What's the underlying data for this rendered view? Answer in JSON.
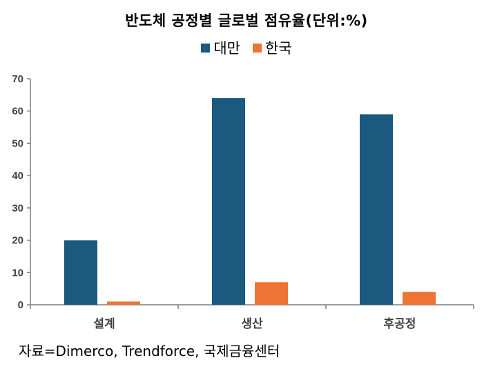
{
  "chart_data": {
    "type": "bar",
    "title": "반도체 공정별 글로벌 점유율(단위:%)",
    "categories": [
      "설계",
      "생산",
      "후공정"
    ],
    "series": [
      {
        "name": "대만",
        "color": "#1b5a7e",
        "values": [
          20,
          64,
          59
        ]
      },
      {
        "name": "한국",
        "color": "#ed7432",
        "values": [
          1,
          7,
          4
        ]
      }
    ],
    "ylim": [
      0,
      70
    ],
    "yticks": [
      "0",
      "10",
      "20",
      "30",
      "40",
      "50",
      "60",
      "70"
    ],
    "xlabel": "",
    "ylabel": "",
    "grid": false,
    "legend_position": "top-center"
  },
  "source_note": "자료=Dimerco, Trendforce, 국제금융센터"
}
